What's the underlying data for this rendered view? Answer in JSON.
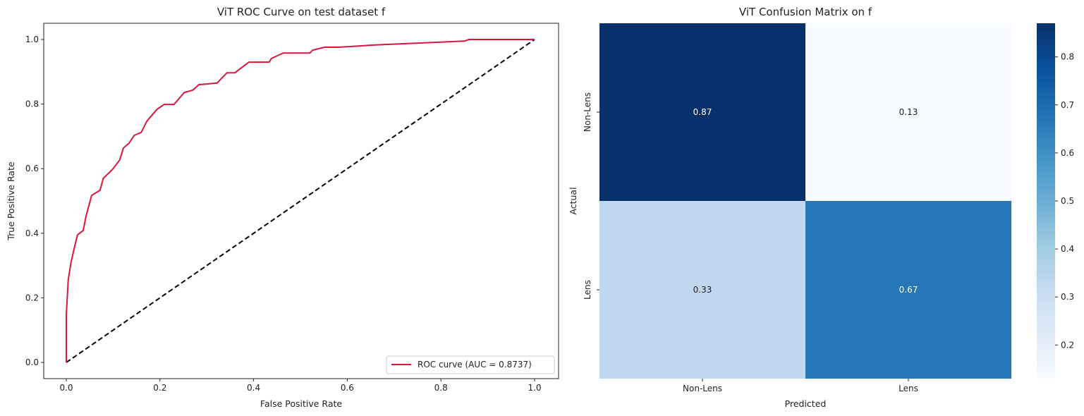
{
  "chart_data": [
    {
      "type": "line",
      "title": "ViT ROC Curve on test dataset f",
      "xlabel": "False Positive Rate",
      "ylabel": "True Positive Rate",
      "xlim": [
        -0.05,
        1.05
      ],
      "ylim": [
        -0.05,
        1.05
      ],
      "xticks": [
        "0.0",
        "0.2",
        "0.4",
        "0.6",
        "0.8",
        "1.0"
      ],
      "yticks": [
        "0.0",
        "0.2",
        "0.4",
        "0.6",
        "0.8",
        "1.0"
      ],
      "grid": false,
      "legend_position": "lower-right",
      "series": [
        {
          "name": "ROC curve (AUC = 0.8737)",
          "color": "#dc143c",
          "x": [
            0,
            0,
            0.004,
            0.01,
            0.017,
            0.024,
            0.036,
            0.042,
            0.054,
            0.072,
            0.079,
            0.099,
            0.114,
            0.122,
            0.134,
            0.145,
            0.16,
            0.172,
            0.185,
            0.194,
            0.209,
            0.23,
            0.252,
            0.27,
            0.283,
            0.322,
            0.343,
            0.36,
            0.38,
            0.39,
            0.433,
            0.438,
            0.463,
            0.52,
            0.526,
            0.551,
            0.58,
            0.66,
            0.72,
            0.85,
            0.86,
            1.0
          ],
          "y": [
            0,
            0.146,
            0.255,
            0.308,
            0.354,
            0.395,
            0.408,
            0.452,
            0.517,
            0.533,
            0.57,
            0.598,
            0.627,
            0.664,
            0.679,
            0.703,
            0.712,
            0.747,
            0.769,
            0.784,
            0.799,
            0.799,
            0.836,
            0.843,
            0.86,
            0.865,
            0.897,
            0.897,
            0.919,
            0.93,
            0.93,
            0.941,
            0.958,
            0.958,
            0.967,
            0.976,
            0.976,
            0.983,
            0.987,
            0.995,
            1.0,
            1.0
          ]
        },
        {
          "name": "",
          "color": "#000000",
          "style": "dashed",
          "x": [
            0,
            1
          ],
          "y": [
            0,
            1
          ]
        }
      ]
    },
    {
      "type": "heatmap",
      "title": "ViT Confusion Matrix on f",
      "xlabel": "Predicted",
      "ylabel": "Actual",
      "x_categories": [
        "Non-Lens",
        "Lens"
      ],
      "y_categories": [
        "Non-Lens",
        "Lens"
      ],
      "values": [
        [
          0.87,
          0.13
        ],
        [
          0.33,
          0.67
        ]
      ],
      "value_labels": [
        [
          "0.87",
          "0.13"
        ],
        [
          "0.33",
          "0.67"
        ]
      ],
      "colormap": "Blues",
      "colorbar": {
        "range": [
          0.13,
          0.87
        ],
        "ticks": [
          "0.2",
          "0.3",
          "0.4",
          "0.5",
          "0.6",
          "0.7",
          "0.8"
        ]
      }
    }
  ]
}
